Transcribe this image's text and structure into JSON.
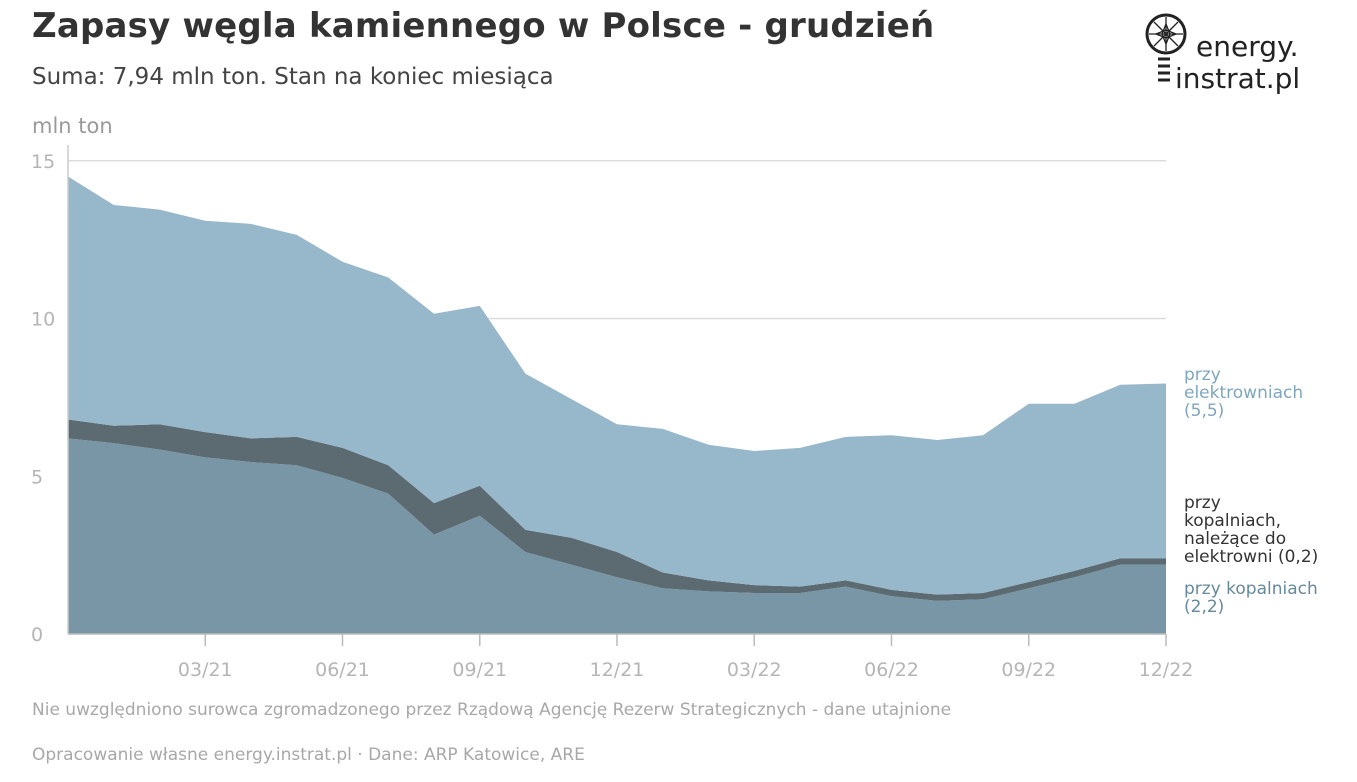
{
  "title": "Zapasy węgla kamiennego w Polsce - grudzień",
  "subtitle": "Suma: 7,94 mln ton. Stan na koniec miesiąca",
  "y_unit": "mln ton",
  "logo": {
    "line1": "energy.",
    "line2": "instrat.pl"
  },
  "note": "Nie uwzględniono surowca zgromadzonego przez Rządową Agencję Rezerw Strategicznych - dane utajnione",
  "source": "Opracowanie własne energy.instrat.pl · Dane: ARP Katowice, ARE",
  "series_labels": {
    "elec": [
      "przy",
      "elektrowniach",
      "(5,5)"
    ],
    "minepp": [
      "przy",
      "kopalniach,",
      "należące do",
      "elektrowni (0,2)"
    ],
    "mine": [
      "przy kopalniach",
      "(2,2)"
    ]
  },
  "colors": {
    "elec": "#97b7ca",
    "minepp": "#5c6a72",
    "mine": "#7896a6",
    "grid": "#dddddd",
    "tick": "#b5b5b5"
  },
  "chart_data": {
    "type": "area",
    "stacked": true,
    "x": [
      "12/20",
      "01/21",
      "02/21",
      "03/21",
      "04/21",
      "05/21",
      "06/21",
      "07/21",
      "08/21",
      "09/21",
      "10/21",
      "11/21",
      "12/21",
      "01/22",
      "02/22",
      "03/22",
      "04/22",
      "05/22",
      "06/22",
      "07/22",
      "08/22",
      "09/22",
      "10/22",
      "11/22",
      "12/22"
    ],
    "x_ticks": [
      "03/21",
      "06/21",
      "09/21",
      "12/21",
      "03/22",
      "06/22",
      "09/22",
      "12/22"
    ],
    "y_ticks": [
      0,
      5,
      10,
      15
    ],
    "ylim": [
      0,
      15.5
    ],
    "series": [
      {
        "name": "przy kopalniach",
        "values": [
          6.2,
          6.05,
          5.85,
          5.6,
          5.45,
          5.35,
          4.95,
          4.45,
          3.15,
          3.75,
          2.6,
          2.2,
          1.8,
          1.45,
          1.35,
          1.3,
          1.3,
          1.5,
          1.2,
          1.05,
          1.1,
          1.45,
          1.8,
          2.2,
          2.2
        ]
      },
      {
        "name": "przy kopalniach, należące do elektrowni",
        "values": [
          0.6,
          0.55,
          0.8,
          0.8,
          0.75,
          0.9,
          0.95,
          0.9,
          1.0,
          0.95,
          0.7,
          0.85,
          0.8,
          0.5,
          0.35,
          0.25,
          0.2,
          0.2,
          0.2,
          0.2,
          0.2,
          0.2,
          0.2,
          0.2,
          0.2
        ]
      },
      {
        "name": "przy elektrowniach",
        "values": [
          7.7,
          7.0,
          6.8,
          6.7,
          6.8,
          6.4,
          5.9,
          5.95,
          6.0,
          5.7,
          4.95,
          4.4,
          4.05,
          4.55,
          4.3,
          4.25,
          4.4,
          4.55,
          4.9,
          4.9,
          5.0,
          5.65,
          5.3,
          5.5,
          5.54
        ]
      }
    ]
  }
}
